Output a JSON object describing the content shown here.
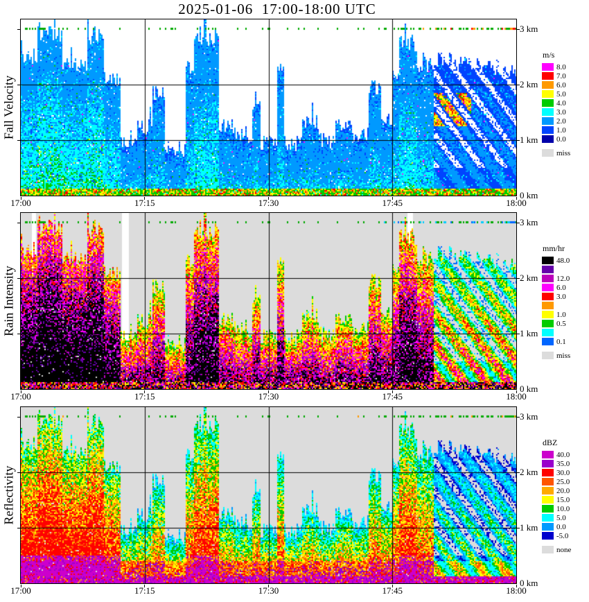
{
  "title": "2025-01-06  17:00-18:00 UTC",
  "time_ticks": [
    "17:00",
    "17:15",
    "17:30",
    "17:45",
    "18:00"
  ],
  "height_ticks": [
    "3 km",
    "2 km",
    "1 km",
    "0 km"
  ],
  "colors": {
    "plot_border": "#000000",
    "grid": "#000000",
    "marker_green": "#00aa00",
    "marker_orange": "#ff9900",
    "marker_red": "#ff0000",
    "marker_cyan": "#00ccff",
    "marker_blue": "#0066ff",
    "missing_gray": "#dcdcdc",
    "white": "#ffffff"
  },
  "panels": [
    {
      "ylabel": "Fall Velocity",
      "legend_title": "m/s",
      "plot_background": "#ffffff",
      "legend": [
        {
          "label": "8.0",
          "color": "#ff00ff"
        },
        {
          "label": "7.0",
          "color": "#ff0000"
        },
        {
          "label": "6.0",
          "color": "#ff9900"
        },
        {
          "label": "5.0",
          "color": "#ffff00"
        },
        {
          "label": "4.0",
          "color": "#00cc00"
        },
        {
          "label": "3.0",
          "color": "#00ffff"
        },
        {
          "label": "2.0",
          "color": "#0099ff"
        },
        {
          "label": "1.0",
          "color": "#0044ff"
        },
        {
          "label": "0.0",
          "color": "#0000aa"
        }
      ],
      "missing": {
        "label": "miss",
        "color": "#dcdcdc"
      }
    },
    {
      "ylabel": "Rain Intensity",
      "legend_title": "mm/hr",
      "plot_background": "#dcdcdc",
      "legend": [
        {
          "label": "48.0",
          "color": "#000000"
        },
        {
          "label": "",
          "color": "#6600aa"
        },
        {
          "label": "12.0",
          "color": "#bb00bb"
        },
        {
          "label": "6.0",
          "color": "#ff00ff"
        },
        {
          "label": "3.0",
          "color": "#ff0000"
        },
        {
          "label": "",
          "color": "#ff9900"
        },
        {
          "label": "1.0",
          "color": "#ffff00"
        },
        {
          "label": "0.5",
          "color": "#00cc00"
        },
        {
          "label": "",
          "color": "#00ffff"
        },
        {
          "label": "0.1",
          "color": "#0066ff"
        }
      ],
      "missing": {
        "label": "miss",
        "color": "#dcdcdc"
      }
    },
    {
      "ylabel": "Reflectivity",
      "legend_title": "dBZ",
      "plot_background": "#dcdcdc",
      "legend": [
        {
          "label": "40.0",
          "color": "#cc00cc"
        },
        {
          "label": "35.0",
          "color": "#9900cc"
        },
        {
          "label": "30.0",
          "color": "#ff0000"
        },
        {
          "label": "25.0",
          "color": "#ff5500"
        },
        {
          "label": "20.0",
          "color": "#ffaa00"
        },
        {
          "label": "15.0",
          "color": "#ffff00"
        },
        {
          "label": "10.0",
          "color": "#00cc00"
        },
        {
          "label": "5.0",
          "color": "#00ffff"
        },
        {
          "label": "0.0",
          "color": "#0099ff"
        },
        {
          "label": "-5.0",
          "color": "#0000cc"
        }
      ],
      "missing": {
        "label": "none",
        "color": "#dcdcdc"
      }
    }
  ],
  "chart_data": {
    "type": "heatmap",
    "title": "2025-01-06  17:00-18:00 UTC",
    "x_axis": {
      "ticks": [
        "17:00",
        "17:15",
        "17:30",
        "17:45",
        "18:00"
      ],
      "range_minutes": [
        0,
        60
      ]
    },
    "y_axis": {
      "ticks_km": [
        0,
        1,
        2,
        3
      ],
      "range_km": [
        0,
        3.18
      ]
    },
    "variables": [
      "Fall Velocity (m/s)",
      "Rain Intensity (mm/hr)",
      "Reflectivity (dBZ)"
    ],
    "echo_episodes": [
      [
        0,
        2,
        2.5,
        0.95
      ],
      [
        2,
        5,
        2.9,
        1.0
      ],
      [
        5,
        8,
        2.35,
        0.95
      ],
      [
        8,
        10,
        2.85,
        0.95
      ],
      [
        10,
        12,
        2.1,
        0.85
      ],
      [
        12,
        14,
        0.95,
        0.7
      ],
      [
        14,
        16,
        1.25,
        0.7
      ],
      [
        16,
        17.5,
        1.85,
        0.75
      ],
      [
        17.5,
        20,
        0.85,
        0.65
      ],
      [
        20,
        21,
        2.3,
        0.85
      ],
      [
        21,
        24,
        2.85,
        0.95
      ],
      [
        24,
        26,
        1.25,
        0.75
      ],
      [
        26,
        28,
        1.05,
        0.7
      ],
      [
        28,
        29,
        1.6,
        0.75
      ],
      [
        29,
        31,
        0.95,
        0.7
      ],
      [
        31,
        31.8,
        2.3,
        0.8
      ],
      [
        31.8,
        34,
        0.95,
        0.7
      ],
      [
        34,
        36,
        1.3,
        0.72
      ],
      [
        36,
        38,
        1.0,
        0.68
      ],
      [
        38,
        40,
        1.25,
        0.72
      ],
      [
        40,
        42,
        1.1,
        0.7
      ],
      [
        42,
        43.5,
        1.95,
        0.8
      ],
      [
        43.5,
        45,
        1.4,
        0.78
      ],
      [
        45,
        45.8,
        2.1,
        0.8
      ],
      [
        45.8,
        48,
        2.75,
        0.95
      ],
      [
        48,
        50,
        2.35,
        0.8
      ],
      [
        50,
        60,
        2.45,
        0.5
      ]
    ],
    "trailing": {
      "start_min": 50,
      "top_km": 2.45,
      "descent_km_per_min": 0.02,
      "band_spacing_km": 0.55,
      "band_descent_km_per_min": 0.2
    },
    "white_strips": [
      [
        1.3,
        1.9
      ],
      [
        12.2,
        13.1
      ],
      [
        46.8,
        47.4
      ]
    ],
    "surface_band_top_km": 0.13
  }
}
